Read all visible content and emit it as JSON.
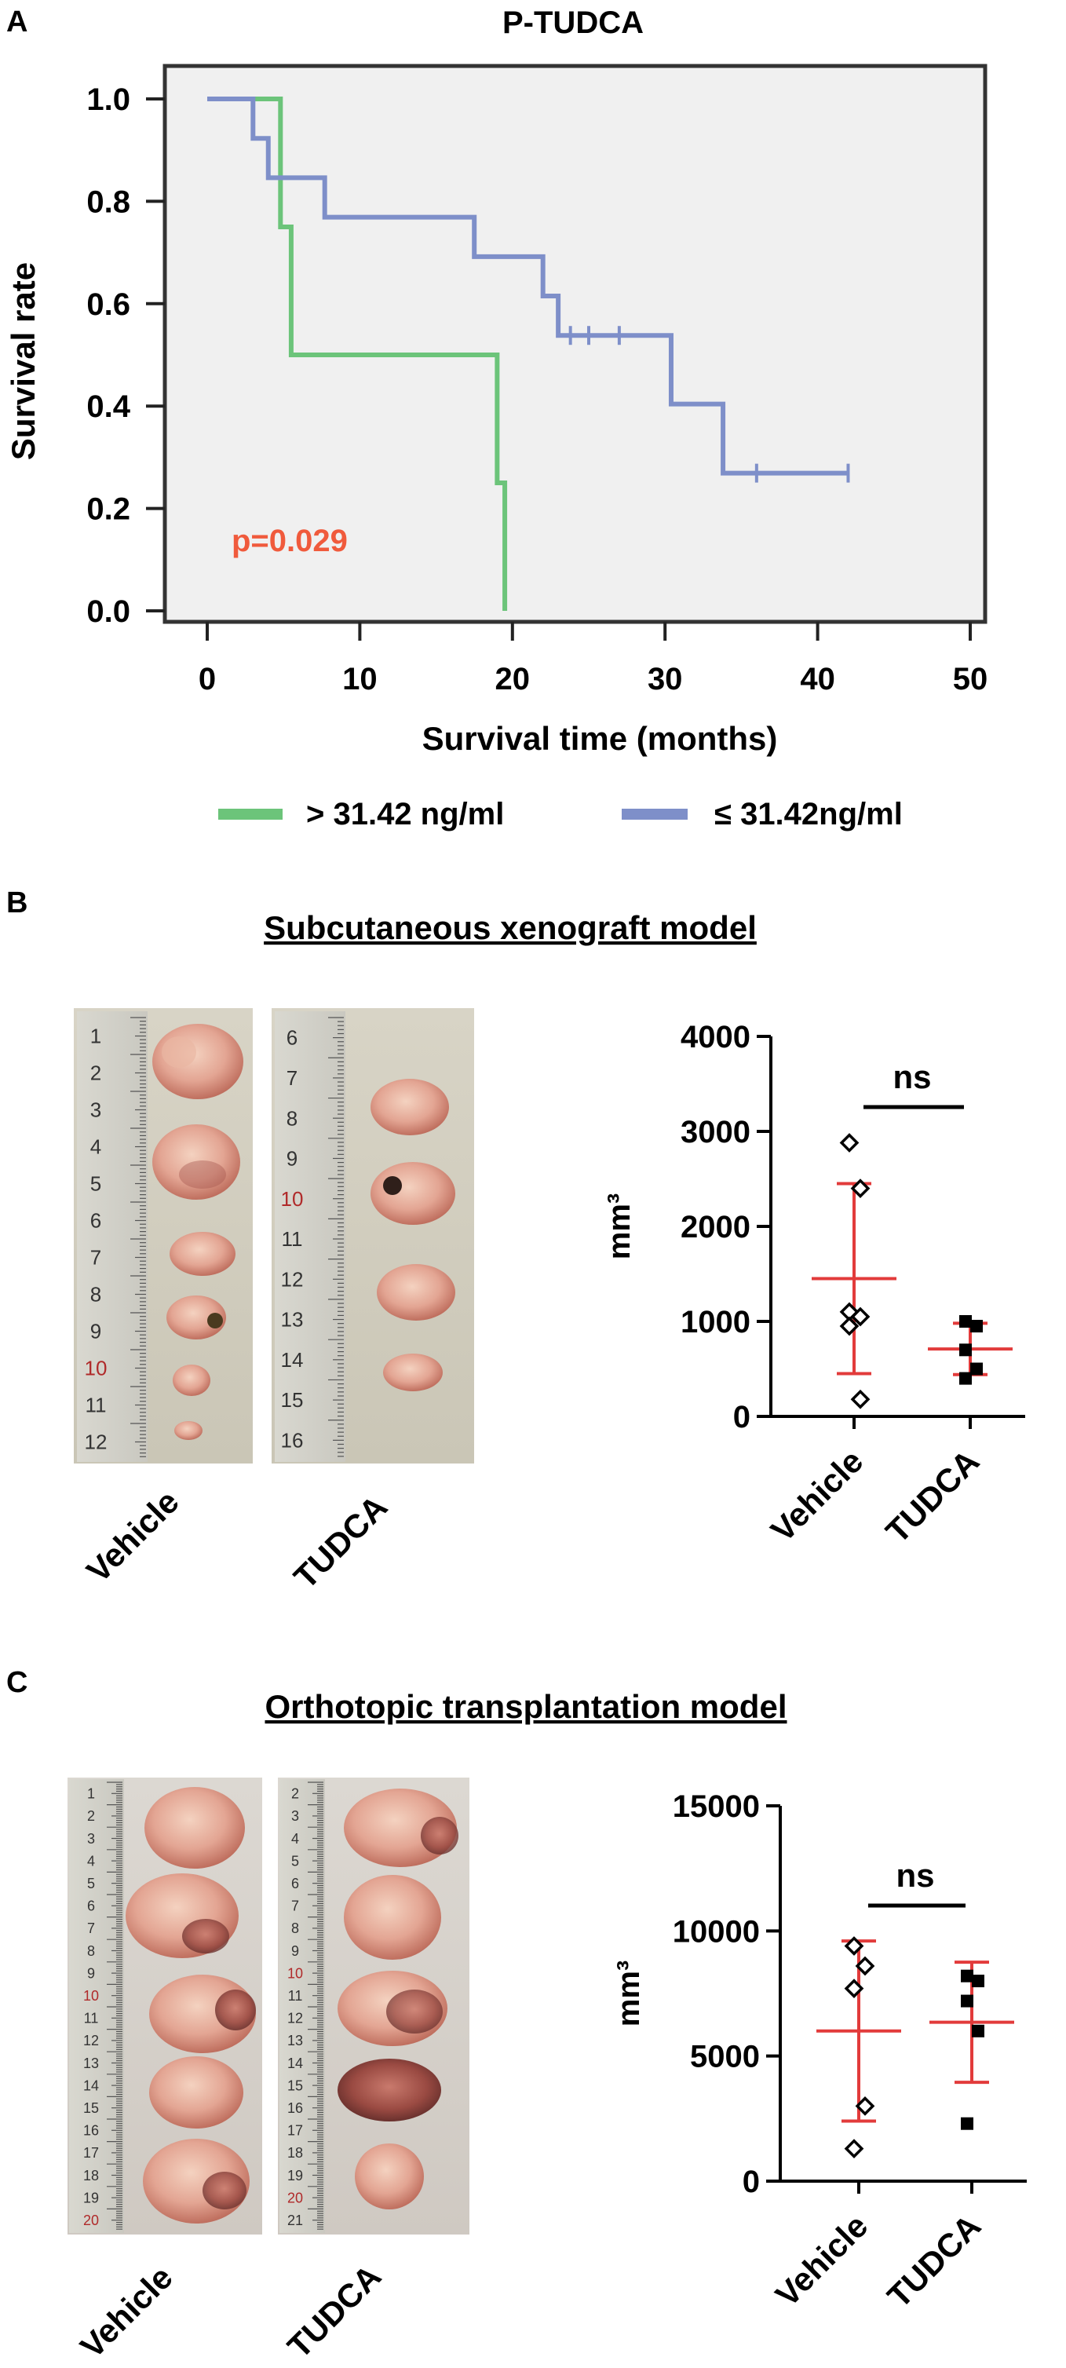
{
  "panels": {
    "a": {
      "letter": "A",
      "title": "P-TUDCA",
      "p_value": "p=0.029",
      "legend": [
        {
          "label": "> 31.42 ng/ml",
          "color": "#6cc47a"
        },
        {
          "label": "≤ 31.42ng/ml",
          "color": "#7e8fc9"
        }
      ]
    },
    "b": {
      "letter": "B",
      "title": "Subcutaneous xenograft model",
      "photo_labels": [
        "Vehicle",
        "TUDCA"
      ],
      "ruler_left": [
        "1",
        "2",
        "3",
        "4",
        "5",
        "6",
        "7",
        "8",
        "9",
        "10",
        "11",
        "12"
      ],
      "ruler_right": [
        "6",
        "7",
        "8",
        "9",
        "10",
        "11",
        "12",
        "13",
        "14",
        "15",
        "16"
      ],
      "significance": "ns"
    },
    "c": {
      "letter": "C",
      "title": "Orthotopic transplantation model",
      "photo_labels": [
        "Vehicle",
        "TUDCA"
      ],
      "ruler_left": [
        "1",
        "2",
        "3",
        "4",
        "5",
        "6",
        "7",
        "8",
        "9",
        "10",
        "11",
        "12",
        "13",
        "14",
        "15",
        "16",
        "17",
        "18",
        "19",
        "20"
      ],
      "ruler_right": [
        "2",
        "3",
        "4",
        "5",
        "6",
        "7",
        "8",
        "9",
        "10",
        "11",
        "12",
        "13",
        "14",
        "15",
        "16",
        "17",
        "18",
        "19",
        "20",
        "21"
      ],
      "significance": "ns"
    }
  },
  "chart_data": [
    {
      "type": "line",
      "subtype": "kaplan-meier",
      "title": "P-TUDCA",
      "xlabel": "Survival time (months)",
      "ylabel": "Survival rate",
      "xlim": [
        0,
        50
      ],
      "ylim": [
        0,
        1.0
      ],
      "xticks": [
        0,
        10,
        20,
        30,
        40,
        50
      ],
      "yticks": [
        "0.0",
        "0.2",
        "0.4",
        "0.6",
        "0.8",
        "1.0"
      ],
      "grid": false,
      "legend_position": "bottom",
      "annotation": "p=0.029",
      "series": [
        {
          "name": "> 31.42 ng/ml",
          "color": "#6cc47a",
          "steps": [
            [
              0,
              1.0
            ],
            [
              4.8,
              0.75
            ],
            [
              5.5,
              0.5
            ],
            [
              19,
              0.25
            ],
            [
              19.5,
              0.0
            ]
          ],
          "censored": []
        },
        {
          "name": "≤ 31.42ng/ml",
          "color": "#7e8fc9",
          "steps": [
            [
              0,
              1.0
            ],
            [
              3,
              0.923
            ],
            [
              4,
              0.846
            ],
            [
              7.7,
              0.769
            ],
            [
              17.5,
              0.692
            ],
            [
              22,
              0.615
            ],
            [
              23,
              0.538
            ],
            [
              30.4,
              0.404
            ],
            [
              33.8,
              0.269
            ]
          ],
          "end": 42,
          "censored": [
            [
              23.8,
              0.538
            ],
            [
              25,
              0.538
            ],
            [
              27,
              0.538
            ],
            [
              36,
              0.269
            ],
            [
              42,
              0.269
            ]
          ]
        }
      ]
    },
    {
      "type": "scatter",
      "ylabel": "mm³",
      "ylim": [
        0,
        4000
      ],
      "yticks": [
        "0",
        "1000",
        "2000",
        "3000",
        "4000"
      ],
      "categories": [
        "Vehicle",
        "TUDCA"
      ],
      "significance": "ns",
      "series": [
        {
          "name": "Vehicle",
          "marker": "diamond",
          "values": [
            2880,
            2400,
            1100,
            1050,
            950,
            180
          ],
          "mean": 1450,
          "sd": 1000,
          "color": "#e23b3b"
        },
        {
          "name": "TUDCA",
          "marker": "square",
          "values": [
            1000,
            950,
            700,
            500,
            400
          ],
          "mean": 710,
          "sd": 270,
          "color": "#e23b3b"
        }
      ]
    },
    {
      "type": "scatter",
      "ylabel": "mm³",
      "ylim": [
        0,
        15000
      ],
      "yticks": [
        "0",
        "5000",
        "10000",
        "15000"
      ],
      "categories": [
        "Vehicle",
        "TUDCA"
      ],
      "significance": "ns",
      "series": [
        {
          "name": "Vehicle",
          "marker": "diamond",
          "values": [
            9400,
            8600,
            7700,
            3000,
            1300
          ],
          "mean": 6000,
          "sd": 3600,
          "color": "#e23b3b"
        },
        {
          "name": "TUDCA",
          "marker": "square",
          "values": [
            8200,
            8000,
            7200,
            6000,
            2300
          ],
          "mean": 6350,
          "sd": 2400,
          "color": "#e23b3b"
        }
      ]
    }
  ]
}
